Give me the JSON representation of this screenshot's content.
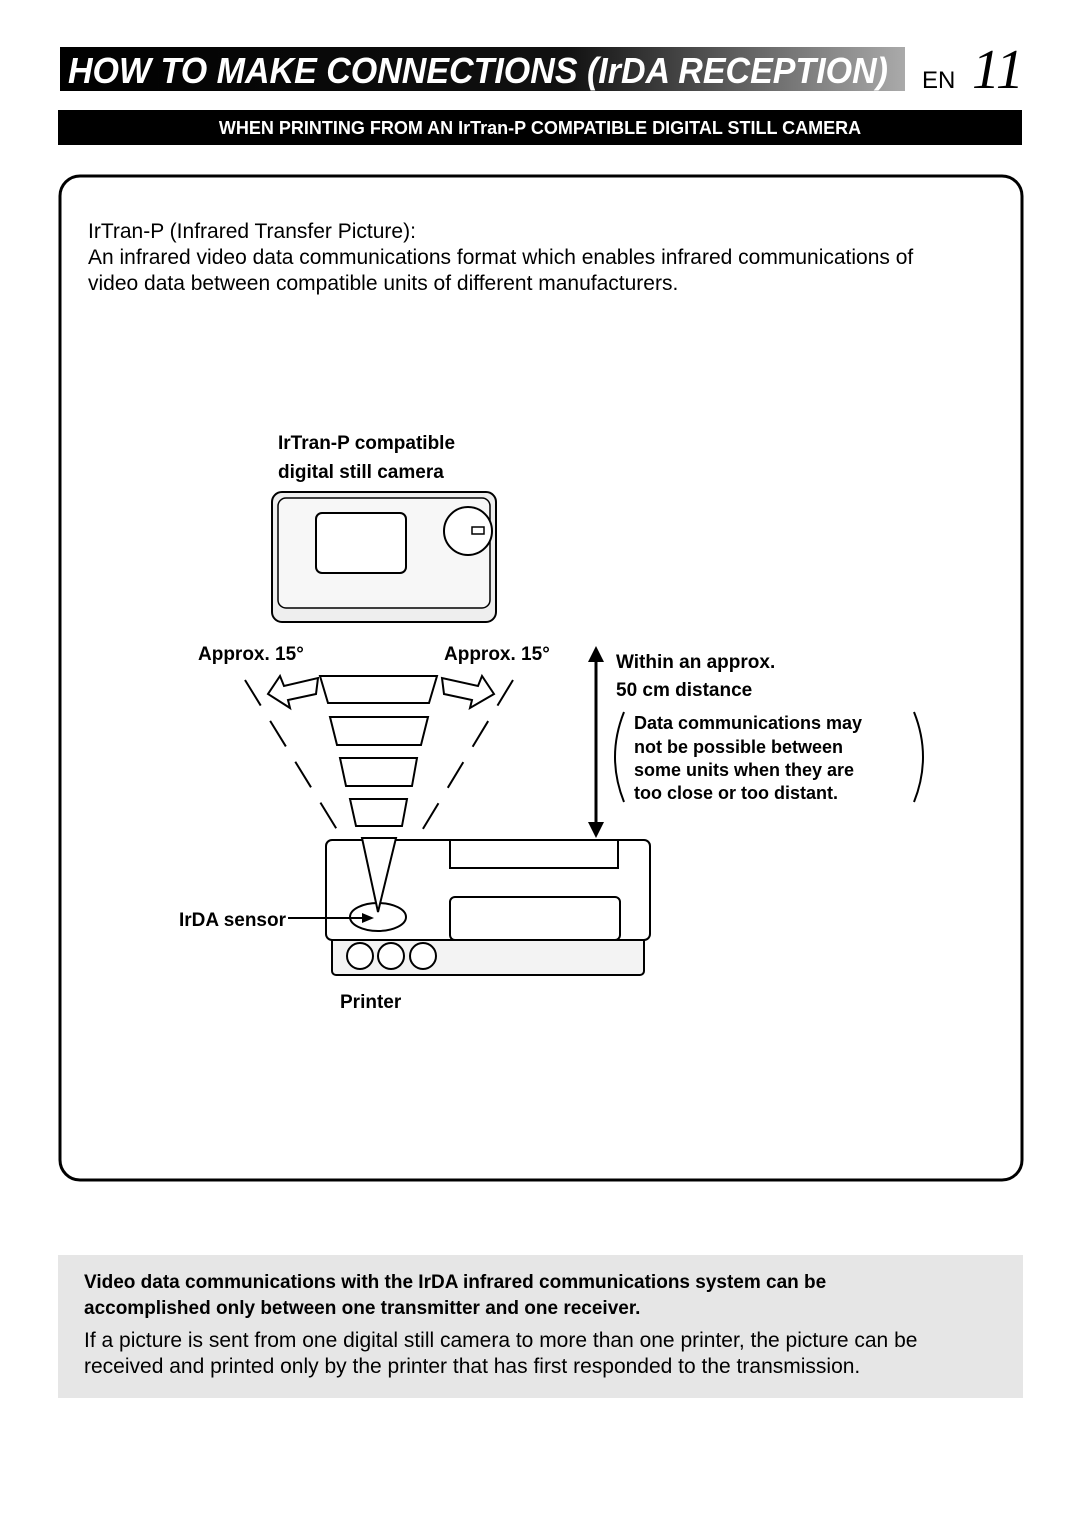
{
  "header": {
    "title": "HOW TO MAKE CONNECTIONS (IrDA RECEPTION)",
    "lang": "EN",
    "page": "11"
  },
  "section": "WHEN PRINTING FROM AN IrTran-P COMPATIBLE DIGITAL STILL CAMERA",
  "box": {
    "term": "IrTran-P (Infrared Transfer Picture):",
    "definition": [
      "An infrared video data communications format which enables infrared communications of",
      "video data between compatible units of different manufacturers."
    ]
  },
  "diagram": {
    "camera_label": [
      "IrTran-P compatible",
      "digital still camera"
    ],
    "angle_left": "Approx. 15°",
    "angle_right": "Approx. 15°",
    "distance": [
      "Within an approx.",
      "50 cm distance"
    ],
    "distance_note": [
      "Data communications may",
      "not be possible between",
      "some units when they are",
      "too close or too distant."
    ],
    "sensor": "IrDA sensor",
    "printer": "Printer"
  },
  "note": {
    "bold": [
      "Video data communications with the IrDA infrared communications system can be",
      "accomplished only between one transmitter and one receiver."
    ],
    "body": [
      "If a picture is sent from one digital still camera to more than one printer, the picture can be",
      "received and printed only by the printer that has first responded to the transmission."
    ]
  }
}
